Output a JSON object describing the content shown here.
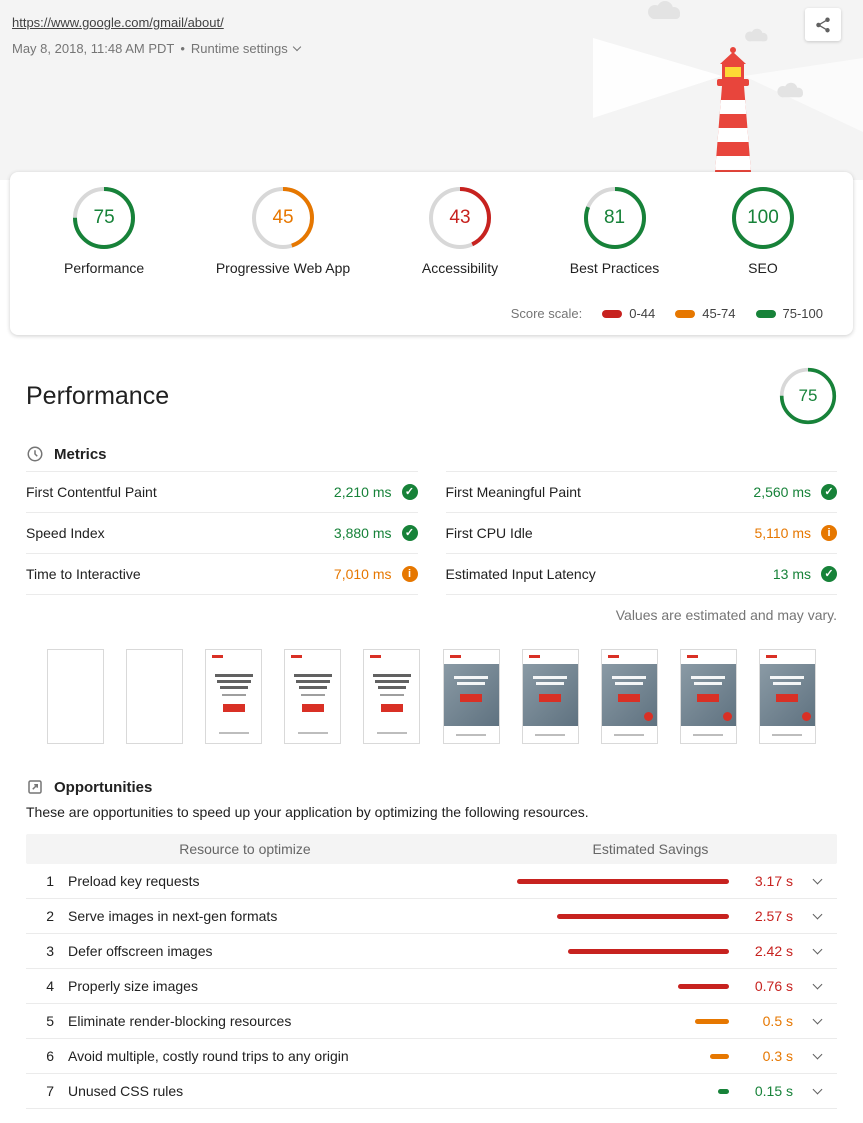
{
  "header": {
    "url": "https://www.google.com/gmail/about/",
    "date": "May 8, 2018, 11:48 AM PDT",
    "separator": "•",
    "runtime_settings": "Runtime settings"
  },
  "colors": {
    "pass": "#178239",
    "average": "#e67700",
    "fail": "#c7221f"
  },
  "scores": {
    "items": [
      {
        "label": "Performance",
        "score": 75,
        "color": "#178239"
      },
      {
        "label": "Progressive Web App",
        "score": 45,
        "color": "#e67700"
      },
      {
        "label": "Accessibility",
        "score": 43,
        "color": "#c7221f"
      },
      {
        "label": "Best Practices",
        "score": 81,
        "color": "#178239"
      },
      {
        "label": "SEO",
        "score": 100,
        "color": "#178239"
      }
    ],
    "scale_label": "Score scale:",
    "scale": [
      {
        "label": "0-44",
        "color": "#c7221f"
      },
      {
        "label": "45-74",
        "color": "#e67700"
      },
      {
        "label": "75-100",
        "color": "#178239"
      }
    ]
  },
  "performance": {
    "title": "Performance",
    "gauge": {
      "score": 75,
      "color": "#178239"
    },
    "metrics": {
      "heading": "Metrics",
      "left": [
        {
          "name": "First Contentful Paint",
          "value": "2,210 ms",
          "status": "pass"
        },
        {
          "name": "Speed Index",
          "value": "3,880 ms",
          "status": "pass"
        },
        {
          "name": "Time to Interactive",
          "value": "7,010 ms",
          "status": "average"
        }
      ],
      "right": [
        {
          "name": "First Meaningful Paint",
          "value": "2,560 ms",
          "status": "pass"
        },
        {
          "name": "First CPU Idle",
          "value": "5,110 ms",
          "status": "average"
        },
        {
          "name": "Estimated Input Latency",
          "value": "13 ms",
          "status": "pass"
        }
      ]
    },
    "disclaimer": "Values are estimated and may vary.",
    "filmstrip": [
      "blank",
      "blank",
      "text",
      "text",
      "text",
      "photo",
      "photo",
      "photo-dot",
      "photo-dot",
      "photo-dot"
    ]
  },
  "opportunities": {
    "heading": "Opportunities",
    "description": "These are opportunities to speed up your application by optimizing the following resources.",
    "columns": [
      "Resource to optimize",
      "Estimated Savings"
    ],
    "bar_max_seconds": 3.17,
    "items": [
      {
        "index": 1,
        "label": "Preload key requests",
        "savings": "3.17 s",
        "seconds": 3.17,
        "severity": "fail"
      },
      {
        "index": 2,
        "label": "Serve images in next-gen formats",
        "savings": "2.57 s",
        "seconds": 2.57,
        "severity": "fail"
      },
      {
        "index": 3,
        "label": "Defer offscreen images",
        "savings": "2.42 s",
        "seconds": 2.42,
        "severity": "fail"
      },
      {
        "index": 4,
        "label": "Properly size images",
        "savings": "0.76 s",
        "seconds": 0.76,
        "severity": "fail"
      },
      {
        "index": 5,
        "label": "Eliminate render-blocking resources",
        "savings": "0.5 s",
        "seconds": 0.5,
        "severity": "average"
      },
      {
        "index": 6,
        "label": "Avoid multiple, costly round trips to any origin",
        "savings": "0.3 s",
        "seconds": 0.3,
        "severity": "average"
      },
      {
        "index": 7,
        "label": "Unused CSS rules",
        "savings": "0.15 s",
        "seconds": 0.15,
        "severity": "pass"
      }
    ]
  }
}
